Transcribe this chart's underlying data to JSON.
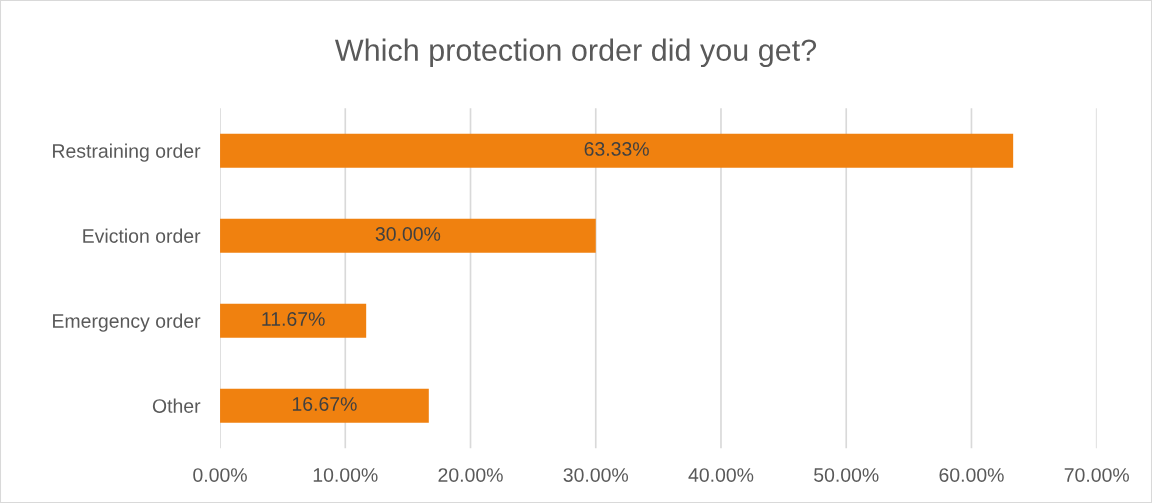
{
  "chart_data": {
    "type": "bar",
    "orientation": "horizontal",
    "title": "Which protection order did you get?",
    "categories": [
      "Restraining order",
      "Eviction order",
      "Emergency order",
      "Other"
    ],
    "values": [
      63.33,
      30.0,
      11.67,
      16.67
    ],
    "color": "#f0810f",
    "value_labels": [
      "63.33%",
      "30.00%",
      "11.67%",
      "16.67%"
    ],
    "xlim": [
      0,
      70
    ],
    "xticks": [
      {
        "value": 0,
        "label": "0.00%"
      },
      {
        "value": 10,
        "label": "10.00%"
      },
      {
        "value": 20,
        "label": "20.00%"
      },
      {
        "value": 30,
        "label": "30.00%"
      },
      {
        "value": 40,
        "label": "40.00%"
      },
      {
        "value": 50,
        "label": "50.00%"
      },
      {
        "value": 60,
        "label": "60.00%"
      },
      {
        "value": 70,
        "label": "70.00%"
      }
    ],
    "grid": "x",
    "legend": false
  }
}
